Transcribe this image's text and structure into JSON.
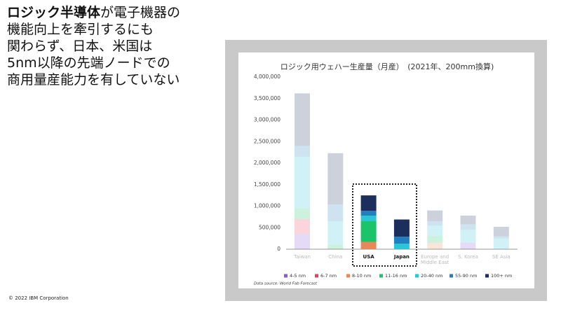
{
  "headline": {
    "emphasis": "ロジック半導体",
    "lines": [
      "が電子機器の",
      "機能向上を牽引するにも",
      "関わらず、日本、米国は",
      "5nm以降の先端ノードでの",
      "商用量産能力を有していない"
    ]
  },
  "footer": "© 2022 IBM Corporation",
  "chart_data": {
    "type": "stacked_bar",
    "title": "ロジック用ウェハー生産量（月産）　(2021年、200mm換算)",
    "source": "Data source: World Fab Forecast",
    "categories": [
      "Taiwan",
      "China",
      "USA",
      "Japan",
      "Europe and Middle East",
      "S. Korea",
      "SE Asia"
    ],
    "highlight": [
      2,
      3
    ],
    "series": [
      {
        "name": "4-5 nm",
        "color": "#8a5cd6",
        "values": [
          350000,
          0,
          0,
          0,
          0,
          150000,
          0
        ]
      },
      {
        "name": "6-7 nm",
        "color": "#e8405a",
        "values": [
          350000,
          0,
          0,
          0,
          0,
          0,
          0
        ]
      },
      {
        "name": "8-10 nm",
        "color": "#e8885a",
        "values": [
          0,
          0,
          170000,
          0,
          150000,
          0,
          0
        ]
      },
      {
        "name": "11-16 nm",
        "color": "#19c46a",
        "values": [
          250000,
          100000,
          480000,
          0,
          150000,
          0,
          0
        ]
      },
      {
        "name": "20-40 nm",
        "color": "#2bc6d6",
        "values": [
          1200000,
          550000,
          130000,
          130000,
          250000,
          300000,
          250000
        ]
      },
      {
        "name": "55-90 nm",
        "color": "#1f7fbf",
        "values": [
          250000,
          390000,
          110000,
          160000,
          100000,
          130000,
          50000
        ]
      },
      {
        "name": "100+ nm",
        "color": "#1c2e5c",
        "values": [
          1220000,
          1190000,
          360000,
          400000,
          250000,
          200000,
          220000
        ]
      }
    ],
    "ylim": [
      0,
      4000000
    ],
    "yticks": [
      0,
      {
        "value": 500000,
        "label": "500,000"
      },
      {
        "value": 1000000,
        "label": "1,000,000"
      },
      {
        "value": 1500000,
        "label": "1,500,000"
      },
      {
        "value": 2000000,
        "label": "2,000,000"
      },
      {
        "value": 2500000,
        "label": "2,500,000"
      },
      {
        "value": 3000000,
        "label": "3,000,000"
      },
      {
        "value": 3500000,
        "label": "3,500,000"
      },
      {
        "value": 4000000,
        "label": "4,000,000"
      }
    ]
  }
}
